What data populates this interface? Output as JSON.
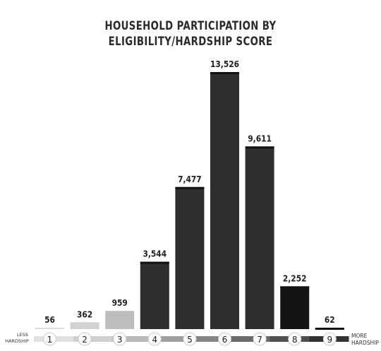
{
  "chart_data": {
    "type": "bar",
    "title_line1": "HOUSEHOLD PARTICIPATION BY",
    "title_line2": "ELIGIBILITY/HARDSHIP SCORE",
    "categories": [
      "1",
      "2",
      "3",
      "4",
      "5",
      "6",
      "7",
      "8",
      "9"
    ],
    "values": [
      56,
      362,
      959,
      3544,
      7477,
      13526,
      9611,
      2252,
      62
    ],
    "value_labels": [
      "56",
      "362",
      "959",
      "3,544",
      "7,477",
      "13,526",
      "9,611",
      "2,252",
      "62"
    ],
    "bar_colors": [
      "#dcdcdc",
      "#d2d2d2",
      "#bdbdbd",
      "#2e2e2e",
      "#2e2e2e",
      "#2e2e2e",
      "#2e2e2e",
      "#141414",
      "#141414"
    ],
    "axis_left_label": [
      "LESS",
      "HARDSHIP"
    ],
    "axis_right_label": [
      "MORE",
      "HARDSHIP"
    ],
    "ylim": [
      0,
      13526
    ],
    "grid": false
  }
}
